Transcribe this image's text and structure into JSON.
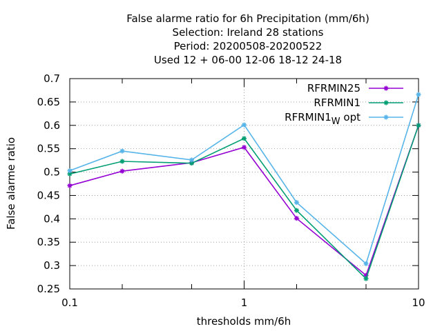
{
  "chart_data": {
    "type": "line",
    "title_lines": [
      "False alarme ratio  for 6h Precipitation (mm/6h)",
      "Selection: Ireland     28 stations",
      "Period: 20200508-20200522",
      "Used  12 + 06-00 12-06 18-12 24-18"
    ],
    "xlabel": "thresholds mm/6h",
    "ylabel": "False alarme ratio",
    "x_scale": "log",
    "xlim": [
      0.1,
      10
    ],
    "ylim": [
      0.25,
      0.7
    ],
    "x_ticks": [
      {
        "value": 0.1,
        "label": "0.1"
      },
      {
        "value": 1,
        "label": "1"
      },
      {
        "value": 10,
        "label": "10"
      }
    ],
    "x_minor_ticks": [
      0.2,
      0.5,
      2,
      5
    ],
    "y_ticks": [
      {
        "value": 0.25,
        "label": "0.25"
      },
      {
        "value": 0.3,
        "label": "0.3"
      },
      {
        "value": 0.35,
        "label": "0.35"
      },
      {
        "value": 0.4,
        "label": "0.4"
      },
      {
        "value": 0.45,
        "label": "0.45"
      },
      {
        "value": 0.5,
        "label": "0.5"
      },
      {
        "value": 0.55,
        "label": "0.55"
      },
      {
        "value": 0.6,
        "label": "0.6"
      },
      {
        "value": 0.65,
        "label": "0.65"
      },
      {
        "value": 0.7,
        "label": "0.7"
      }
    ],
    "grid": true,
    "legend_position": "top-right",
    "x": [
      0.1,
      0.2,
      0.5,
      1,
      2,
      5,
      10
    ],
    "series": [
      {
        "name": "RFRMIN25",
        "color": "#9400d3",
        "values": [
          0.471,
          0.502,
          0.52,
          0.553,
          0.401,
          0.279,
          0.6
        ]
      },
      {
        "name": "RFRMIN1",
        "color": "#009e73",
        "values": [
          0.496,
          0.523,
          0.519,
          0.572,
          0.418,
          0.272,
          0.6
        ]
      },
      {
        "name": "RFRMIN1",
        "name_subscript": "W",
        "name_suffix": " opt",
        "color": "#56b4e9",
        "values": [
          0.503,
          0.545,
          0.526,
          0.601,
          0.435,
          0.304,
          0.666
        ]
      }
    ]
  }
}
